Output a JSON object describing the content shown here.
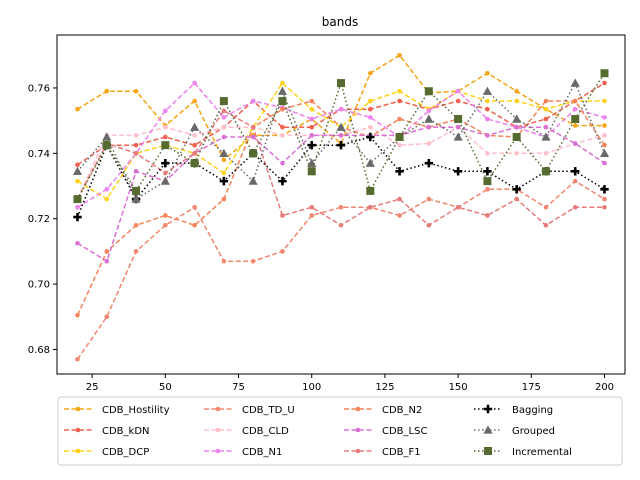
{
  "chart_data": {
    "type": "line",
    "title": "bands",
    "xlabel": "",
    "ylabel": "",
    "x": [
      20,
      30,
      40,
      50,
      60,
      70,
      80,
      90,
      100,
      110,
      120,
      130,
      140,
      150,
      160,
      170,
      180,
      190,
      200
    ],
    "xlim": [
      13,
      207
    ],
    "ylim": [
      0.6725,
      0.7762
    ],
    "xticks": [
      25,
      50,
      75,
      100,
      125,
      150,
      175,
      200
    ],
    "yticks": [
      0.68,
      0.7,
      0.72,
      0.74,
      0.76
    ],
    "ytick_labels": [
      "0.68",
      "0.70",
      "0.72",
      "0.74",
      "0.76"
    ],
    "grid": false,
    "legend_position": "bottom",
    "series": [
      {
        "name": "CDB_Hostility",
        "color": "#f5a516",
        "style": "dashed",
        "marker": "circle",
        "values": [
          0.7535,
          0.759,
          0.759,
          0.7485,
          0.756,
          0.738,
          0.7455,
          0.7455,
          0.7505,
          0.743,
          0.7645,
          0.77,
          0.7585,
          0.759,
          0.7645,
          0.759,
          0.7535,
          0.7485,
          0.7485
        ]
      },
      {
        "name": "CDB_kDN",
        "color": "#f0604c",
        "style": "dashed",
        "marker": "circle",
        "values": [
          0.7365,
          0.7425,
          0.7425,
          0.745,
          0.7425,
          0.748,
          0.756,
          0.748,
          0.748,
          0.7535,
          0.7535,
          0.756,
          0.7535,
          0.756,
          0.7535,
          0.748,
          0.7505,
          0.756,
          0.7615
        ]
      },
      {
        "name": "CDB_DCP",
        "color": "#ffd21a",
        "style": "dashed",
        "marker": "circle",
        "values": [
          0.7315,
          0.726,
          0.74,
          0.7425,
          0.74,
          0.734,
          0.748,
          0.7615,
          0.7535,
          0.748,
          0.756,
          0.759,
          0.7535,
          0.759,
          0.756,
          0.756,
          0.7535,
          0.756,
          0.756
        ]
      },
      {
        "name": "CDB_TD_U",
        "color": "#f28770",
        "style": "dashed",
        "marker": "circle",
        "values": [
          0.677,
          0.69,
          0.71,
          0.718,
          0.7235,
          0.707,
          0.707,
          0.71,
          0.721,
          0.7235,
          0.7235,
          0.721,
          0.726,
          0.7235,
          0.729,
          0.729,
          0.7235,
          0.7315,
          0.726
        ]
      },
      {
        "name": "CDB_CLD",
        "color": "#ffc0cb",
        "style": "dashed",
        "marker": "circle",
        "values": [
          0.726,
          0.7455,
          0.7455,
          0.748,
          0.7455,
          0.748,
          0.748,
          0.7455,
          0.7455,
          0.7455,
          0.748,
          0.7425,
          0.743,
          0.748,
          0.74,
          0.74,
          0.74,
          0.743,
          0.7455
        ]
      },
      {
        "name": "CDB_N1",
        "color": "#ee82ee",
        "style": "dashed",
        "marker": "circle",
        "values": [
          0.7235,
          0.729,
          0.74,
          0.753,
          0.7615,
          0.751,
          0.756,
          0.754,
          0.7505,
          0.7535,
          0.751,
          0.745,
          0.753,
          0.759,
          0.7505,
          0.748,
          0.745,
          0.7535,
          0.751
        ]
      },
      {
        "name": "CDB_N2",
        "color": "#f5845a",
        "style": "dashed",
        "marker": "circle",
        "values": [
          0.6905,
          0.71,
          0.718,
          0.721,
          0.718,
          0.726,
          0.748,
          0.7535,
          0.756,
          0.748,
          0.745,
          0.7505,
          0.748,
          0.7505,
          0.7455,
          0.745,
          0.756,
          0.756,
          0.7425
        ]
      },
      {
        "name": "CDB_LSC",
        "color": "#da70d6",
        "style": "dashed",
        "marker": "circle",
        "values": [
          0.7125,
          0.707,
          0.7345,
          0.7315,
          0.74,
          0.745,
          0.745,
          0.737,
          0.7455,
          0.7455,
          0.7455,
          0.7455,
          0.748,
          0.748,
          0.7455,
          0.748,
          0.748,
          0.743,
          0.737
        ]
      },
      {
        "name": "CDB_F1",
        "color": "#e87a7a",
        "style": "dashed",
        "marker": "circle",
        "values": [
          0.726,
          0.743,
          0.74,
          0.734,
          0.74,
          0.753,
          0.748,
          0.721,
          0.7235,
          0.718,
          0.7235,
          0.726,
          0.718,
          0.7235,
          0.721,
          0.726,
          0.718,
          0.7235,
          0.7235
        ]
      },
      {
        "name": "Bagging",
        "color": "#000000",
        "style": "dotted",
        "marker": "plus",
        "values": [
          0.7205,
          0.7425,
          0.726,
          0.737,
          0.737,
          0.7315,
          0.74,
          0.7315,
          0.7425,
          0.7425,
          0.745,
          0.7345,
          0.737,
          0.7345,
          0.7345,
          0.729,
          0.7345,
          0.7345,
          0.729
        ]
      },
      {
        "name": "Grouped",
        "color": "#696969",
        "style": "dotted",
        "marker": "triangle",
        "values": [
          0.7345,
          0.745,
          0.726,
          0.7315,
          0.748,
          0.74,
          0.7315,
          0.759,
          0.737,
          0.748,
          0.737,
          0.745,
          0.7505,
          0.745,
          0.759,
          0.7505,
          0.745,
          0.7615,
          0.74
        ]
      },
      {
        "name": "Incremental",
        "color": "#556b2f",
        "style": "dotted",
        "marker": "square",
        "values": [
          0.726,
          0.7425,
          0.7285,
          0.7425,
          0.737,
          0.756,
          0.74,
          0.756,
          0.7345,
          0.7615,
          0.7285,
          0.745,
          0.759,
          0.7505,
          0.7315,
          0.745,
          0.7345,
          0.7505,
          0.7645
        ]
      }
    ]
  }
}
